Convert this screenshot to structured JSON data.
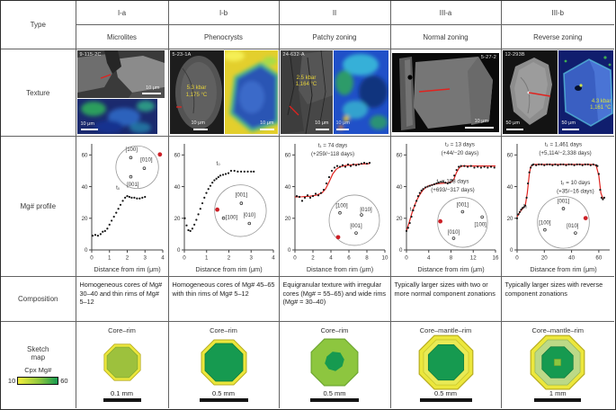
{
  "header": {
    "type_label": "Type",
    "columns": [
      {
        "code": "I-a",
        "name": "Microlites"
      },
      {
        "code": "I-b",
        "name": "Phenocrysts"
      },
      {
        "code": "II",
        "name": "Patchy zoning"
      },
      {
        "code": "III-a",
        "name": "Normal zoning"
      },
      {
        "code": "III-b",
        "name": "Reverse zoning"
      }
    ]
  },
  "row_labels": {
    "texture": "Texture",
    "profile": "Mg# profile",
    "composition": "Composition",
    "sketch": "Sketch\nmap"
  },
  "texture": {
    "cells": [
      {
        "images": [
          {
            "id": "9-115-2C",
            "scale": "10 μm"
          },
          {
            "scale": "10 μm"
          }
        ]
      },
      {
        "images": [
          {
            "id": "5-23-1A",
            "annotation": "5.3 kbar\n1,175 °C",
            "scale": "10 μm"
          },
          {
            "scale": "10 μm"
          }
        ]
      },
      {
        "images": [
          {
            "id": "24-632-A",
            "annotation": "2.5 kbar\n1,164 °C",
            "scale": "10 μm"
          },
          {
            "scale": "10 μm"
          }
        ]
      },
      {
        "images": [
          {
            "id": "5-27-2",
            "scale": "10 μm"
          }
        ]
      },
      {
        "images": [
          {
            "id": "12-293B",
            "scale": "50 μm"
          },
          {
            "annotation": "4.3 kbar\n1,161 °C",
            "scale": "50 μm"
          }
        ]
      }
    ]
  },
  "chart_data": [
    {
      "type": "line",
      "xlabel": "Distance from rim (μm)",
      "xlim": [
        0,
        4
      ],
      "ylim": [
        0,
        67
      ],
      "xticks": [
        0,
        1,
        2,
        3,
        4
      ],
      "yticks": [
        0,
        20,
        40,
        60
      ],
      "points": [
        [
          0.05,
          9
        ],
        [
          0.2,
          9.5
        ],
        [
          0.35,
          9
        ],
        [
          0.5,
          10
        ],
        [
          0.62,
          11.5
        ],
        [
          0.75,
          12
        ],
        [
          0.88,
          13.5
        ],
        [
          1.0,
          16
        ],
        [
          1.12,
          18.5
        ],
        [
          1.25,
          21
        ],
        [
          1.38,
          23.5
        ],
        [
          1.5,
          26
        ],
        [
          1.62,
          28.5
        ],
        [
          1.75,
          31
        ],
        [
          1.88,
          33
        ],
        [
          2.0,
          34
        ],
        [
          2.12,
          33.5
        ],
        [
          2.25,
          33
        ],
        [
          2.4,
          33
        ],
        [
          2.55,
          32.5
        ],
        [
          2.7,
          32.5
        ],
        [
          2.85,
          33
        ],
        [
          3.0,
          33.5
        ]
      ],
      "annotations": [
        {
          "text": "t₀",
          "x": 0.37,
          "y": 0.57
        }
      ],
      "inset": {
        "cx": 0.64,
        "cy": 0.78,
        "r": 0.3,
        "poles": [
          {
            "label": "[100]",
            "x": 0.55,
            "y": 0.87,
            "lx": 0.56,
            "ly": 0.95
          },
          {
            "label": "[010]",
            "x": 0.74,
            "y": 0.77,
            "lx": 0.77,
            "ly": 0.85
          },
          {
            "label": "[001]",
            "x": 0.55,
            "y": 0.69,
            "lx": 0.58,
            "ly": 0.62
          }
        ],
        "red": {
          "x": 0.96,
          "y": 0.9
        }
      }
    },
    {
      "type": "line",
      "xlabel": "Distance from rim (μm)",
      "xlim": [
        0,
        4
      ],
      "ylim": [
        0,
        67
      ],
      "xticks": [
        0,
        1,
        2,
        3,
        4
      ],
      "yticks": [
        0,
        20,
        40,
        60
      ],
      "points": [
        [
          0.02,
          20
        ],
        [
          0.1,
          15.5
        ],
        [
          0.18,
          12.5
        ],
        [
          0.27,
          12
        ],
        [
          0.36,
          13.5
        ],
        [
          0.45,
          16
        ],
        [
          0.54,
          19
        ],
        [
          0.63,
          22.5
        ],
        [
          0.72,
          26
        ],
        [
          0.81,
          29.5
        ],
        [
          0.9,
          33
        ],
        [
          0.99,
          36
        ],
        [
          1.08,
          38.5
        ],
        [
          1.17,
          40.5
        ],
        [
          1.26,
          42.5
        ],
        [
          1.35,
          44
        ],
        [
          1.44,
          45
        ],
        [
          1.53,
          46
        ],
        [
          1.62,
          47
        ],
        [
          1.74,
          47.5
        ],
        [
          1.86,
          48
        ],
        [
          1.98,
          48.5
        ],
        [
          2.1,
          50
        ],
        [
          2.25,
          50
        ],
        [
          2.4,
          49.5
        ],
        [
          2.55,
          49.5
        ],
        [
          2.7,
          49.5
        ],
        [
          2.85,
          49.5
        ],
        [
          3.0,
          49.5
        ],
        [
          3.12,
          49.5
        ]
      ],
      "annotations": [
        {
          "text": "t₀",
          "x": 0.38,
          "y": 0.8
        }
      ],
      "inset": {
        "cx": 0.63,
        "cy": 0.37,
        "r": 0.29,
        "poles": [
          {
            "label": "[001]",
            "x": 0.64,
            "y": 0.44,
            "lx": 0.64,
            "ly": 0.52
          },
          {
            "label": "[100]",
            "x": 0.44,
            "y": 0.3,
            "lx": 0.53,
            "ly": 0.31
          },
          {
            "label": "[010]",
            "x": 0.73,
            "y": 0.25,
            "lx": 0.73,
            "ly": 0.33
          }
        ],
        "red": {
          "x": 0.37,
          "y": 0.38
        }
      }
    },
    {
      "type": "line",
      "xlabel": "Distance from rim (μm)",
      "xlim": [
        0,
        10
      ],
      "ylim": [
        0,
        67
      ],
      "xticks": [
        0,
        2,
        4,
        6,
        8,
        10
      ],
      "yticks": [
        0,
        20,
        40,
        60
      ],
      "points": [
        [
          0.2,
          34
        ],
        [
          0.5,
          33.5
        ],
        [
          0.8,
          31
        ],
        [
          1.1,
          33
        ],
        [
          1.4,
          34.5
        ],
        [
          1.7,
          33
        ],
        [
          2.0,
          34
        ],
        [
          2.3,
          35.5
        ],
        [
          2.6,
          34.5
        ],
        [
          2.9,
          36
        ],
        [
          3.2,
          38
        ],
        [
          3.5,
          42
        ],
        [
          3.8,
          46
        ],
        [
          4.1,
          50
        ],
        [
          4.4,
          52
        ],
        [
          4.7,
          53
        ],
        [
          5.0,
          52.5
        ],
        [
          5.3,
          53.5
        ],
        [
          5.6,
          52.5
        ],
        [
          5.9,
          54
        ],
        [
          6.2,
          53
        ],
        [
          6.5,
          54
        ],
        [
          6.8,
          53.5
        ],
        [
          7.1,
          54
        ],
        [
          7.4,
          54.5
        ],
        [
          7.7,
          55
        ],
        [
          8.0,
          54.5
        ],
        [
          8.3,
          55
        ]
      ],
      "fit": [
        [
          0,
          33.5
        ],
        [
          0.8,
          33.6
        ],
        [
          1.6,
          33.9
        ],
        [
          2.4,
          34.6
        ],
        [
          3.0,
          36
        ],
        [
          3.4,
          38.5
        ],
        [
          3.8,
          43
        ],
        [
          4.2,
          48
        ],
        [
          4.6,
          51
        ],
        [
          5.0,
          52.5
        ],
        [
          5.6,
          53.3
        ],
        [
          6.4,
          53.8
        ],
        [
          7.2,
          54.2
        ],
        [
          8.3,
          54.5
        ]
      ],
      "annotations": [
        {
          "text": "t₁ = 74 days",
          "x": 0.42,
          "y": 0.97
        },
        {
          "text": "(+259/−118 days)",
          "x": 0.42,
          "y": 0.89
        }
      ],
      "inset": {
        "cx": 0.66,
        "cy": 0.28,
        "r": 0.28,
        "poles": [
          {
            "label": "[100]",
            "x": 0.5,
            "y": 0.35,
            "lx": 0.52,
            "ly": 0.42
          },
          {
            "label": "[010]",
            "x": 0.74,
            "y": 0.33,
            "lx": 0.79,
            "ly": 0.38
          },
          {
            "label": "[001]",
            "x": 0.68,
            "y": 0.16,
            "lx": 0.68,
            "ly": 0.23
          }
        ],
        "red": {
          "x": 0.48,
          "y": 0.12
        }
      }
    },
    {
      "type": "line",
      "xlabel": "Distance from rim (μm)",
      "xlim": [
        0,
        16
      ],
      "ylim": [
        0,
        67
      ],
      "xticks": [
        0,
        4,
        8,
        12,
        16
      ],
      "yticks": [
        0,
        20,
        40,
        60
      ],
      "points": [
        [
          0,
          12
        ],
        [
          0.3,
          14
        ],
        [
          0.6,
          17
        ],
        [
          0.9,
          21
        ],
        [
          1.2,
          25
        ],
        [
          1.5,
          28
        ],
        [
          1.8,
          31
        ],
        [
          2.1,
          34
        ],
        [
          2.4,
          36
        ],
        [
          2.7,
          37.5
        ],
        [
          3.0,
          38.5
        ],
        [
          3.4,
          39.5
        ],
        [
          3.8,
          40
        ],
        [
          4.2,
          40.5
        ],
        [
          4.6,
          41
        ],
        [
          5.0,
          41.5
        ],
        [
          5.4,
          42
        ],
        [
          5.8,
          42.5
        ],
        [
          6.2,
          43
        ],
        [
          6.6,
          43
        ],
        [
          7.0,
          42.5
        ],
        [
          7.4,
          42
        ],
        [
          7.8,
          42.5
        ],
        [
          8.2,
          44
        ],
        [
          8.6,
          47
        ],
        [
          9.0,
          50.5
        ],
        [
          9.4,
          52.5
        ],
        [
          9.8,
          53
        ],
        [
          10.4,
          53
        ],
        [
          11.0,
          52.5
        ],
        [
          11.6,
          53
        ],
        [
          12.2,
          52
        ],
        [
          12.8,
          52.5
        ],
        [
          13.4,
          52
        ],
        [
          14.0,
          52.5
        ],
        [
          14.6,
          52
        ],
        [
          15.2,
          52.5
        ],
        [
          15.8,
          52
        ]
      ],
      "fit": [
        [
          0,
          12
        ],
        [
          0.5,
          17.5
        ],
        [
          1.0,
          23.5
        ],
        [
          1.5,
          28.5
        ],
        [
          2.0,
          32.5
        ],
        [
          2.5,
          35.5
        ],
        [
          3.0,
          38
        ],
        [
          3.5,
          39.5
        ],
        [
          4.0,
          40.5
        ],
        [
          5,
          41.5
        ],
        [
          6,
          42
        ],
        [
          7,
          42.2
        ],
        [
          8,
          42.8
        ],
        [
          8.5,
          44.5
        ],
        [
          9,
          49
        ],
        [
          9.5,
          52
        ],
        [
          10,
          53
        ],
        [
          11,
          53
        ],
        [
          13,
          53
        ],
        [
          16,
          53
        ]
      ],
      "annotations": [
        {
          "text": "t₂ = 13 days",
          "x": 0.6,
          "y": 0.98
        },
        {
          "text": "(+44/−20 days)",
          "x": 0.6,
          "y": 0.9
        },
        {
          "text": "t₁ = 198 days",
          "x": 0.52,
          "y": 0.63
        },
        {
          "text": "(+693/−317 days)",
          "x": 0.52,
          "y": 0.55
        },
        {
          "text": "t₀",
          "x": 0.06,
          "y": 0.37
        }
      ],
      "inset": {
        "cx": 0.63,
        "cy": 0.26,
        "r": 0.28,
        "poles": [
          {
            "label": "[001]",
            "x": 0.63,
            "y": 0.36,
            "lx": 0.63,
            "ly": 0.43
          },
          {
            "label": "[100]",
            "x": 0.85,
            "y": 0.31,
            "lx": 0.83,
            "ly": 0.24
          },
          {
            "label": "[010]",
            "x": 0.53,
            "y": 0.11,
            "lx": 0.53,
            "ly": 0.17
          }
        ],
        "red": {
          "x": 0.38,
          "y": 0.27
        }
      }
    },
    {
      "type": "line",
      "xlabel": "Distance from rim (μm)",
      "xlim": [
        0,
        68
      ],
      "ylim": [
        0,
        67
      ],
      "xticks": [
        0,
        20,
        40,
        60
      ],
      "yticks": [
        0,
        20,
        40,
        60
      ],
      "points": [
        [
          0,
          20
        ],
        [
          1,
          22.5
        ],
        [
          2,
          24
        ],
        [
          3,
          25.5
        ],
        [
          4,
          26.5
        ],
        [
          5,
          27
        ],
        [
          6,
          28
        ],
        [
          7,
          33
        ],
        [
          8,
          42
        ],
        [
          9,
          49
        ],
        [
          10,
          52
        ],
        [
          11,
          53.5
        ],
        [
          12,
          54
        ],
        [
          14,
          53.5
        ],
        [
          16,
          54
        ],
        [
          18,
          54
        ],
        [
          20,
          53.5
        ],
        [
          22,
          54
        ],
        [
          24,
          54
        ],
        [
          26,
          53.5
        ],
        [
          28,
          54
        ],
        [
          30,
          53.5
        ],
        [
          32,
          54
        ],
        [
          34,
          54
        ],
        [
          36,
          53.5
        ],
        [
          38,
          54
        ],
        [
          40,
          54
        ],
        [
          42,
          53.5
        ],
        [
          44,
          54
        ],
        [
          46,
          54
        ],
        [
          48,
          53.5
        ],
        [
          50,
          54
        ],
        [
          52,
          54
        ],
        [
          54,
          53.5
        ],
        [
          56,
          54
        ],
        [
          58,
          53.5
        ],
        [
          59,
          53
        ],
        [
          60,
          48
        ],
        [
          61,
          38
        ],
        [
          62,
          33
        ],
        [
          63,
          32
        ],
        [
          64,
          33
        ]
      ],
      "fit": [
        [
          0,
          21
        ],
        [
          3,
          25
        ],
        [
          6,
          28
        ],
        [
          7.5,
          36
        ],
        [
          9,
          48
        ],
        [
          10,
          52.5
        ],
        [
          12,
          54
        ],
        [
          30,
          54
        ],
        [
          55,
          54
        ],
        [
          58,
          53.5
        ],
        [
          60,
          47
        ],
        [
          61.5,
          36
        ],
        [
          63,
          32.5
        ]
      ],
      "annotations": [
        {
          "text": "t₁ = 1,461 days",
          "x": 0.5,
          "y": 0.98
        },
        {
          "text": "(+5,114/−2,338 days)",
          "x": 0.52,
          "y": 0.9
        },
        {
          "text": "t₂ = 10 days",
          "x": 0.63,
          "y": 0.62
        },
        {
          "text": "(+35/−16 days)",
          "x": 0.63,
          "y": 0.54
        },
        {
          "text": "t₀",
          "x": 0.09,
          "y": 0.4
        }
      ],
      "inset": {
        "cx": 0.5,
        "cy": 0.26,
        "r": 0.28,
        "poles": [
          {
            "label": "[001]",
            "x": 0.5,
            "y": 0.39,
            "lx": 0.5,
            "ly": 0.46
          },
          {
            "label": "[100]",
            "x": 0.3,
            "y": 0.19,
            "lx": 0.3,
            "ly": 0.26
          },
          {
            "label": "[010]",
            "x": 0.63,
            "y": 0.16,
            "lx": 0.6,
            "ly": 0.23
          }
        ],
        "red": {
          "x": 0.74,
          "y": 0.3
        }
      }
    }
  ],
  "composition": [
    "Homogeneous cores of Mg# 30–40 and thin rims of Mg# 5–12",
    "Homogeneous cores of Mg# 45–65 with thin rims of Mg# 5–12",
    "Equigranular texture with irregular cores (Mg# = 55–65) and wide rims (Mg# = 30–40)",
    "Typically larger sizes with two or more normal component zonations",
    "Typically larger sizes with reverse component zonations"
  ],
  "sketch": {
    "legend": {
      "label": "Cpx Mg#",
      "min": "10",
      "max": "60"
    },
    "items": [
      {
        "title": "Core–rim",
        "scale": "0.1 mm"
      },
      {
        "title": "Core–rim",
        "scale": "0.5 mm"
      },
      {
        "title": "Core–rim",
        "scale": "0.5 mm"
      },
      {
        "title": "Core–mantle–rim",
        "scale": "0.5 mm"
      },
      {
        "title": "Core–mantle–rim",
        "scale": "1 mm"
      }
    ]
  },
  "colors": {
    "fit_red": "#e0231f",
    "marker": "#161616",
    "red_dot": "#cc2027",
    "yellow": "#ece73c",
    "yellow_green": "#8dc63f",
    "green": "#169a50",
    "light_green": "#bcd987"
  }
}
